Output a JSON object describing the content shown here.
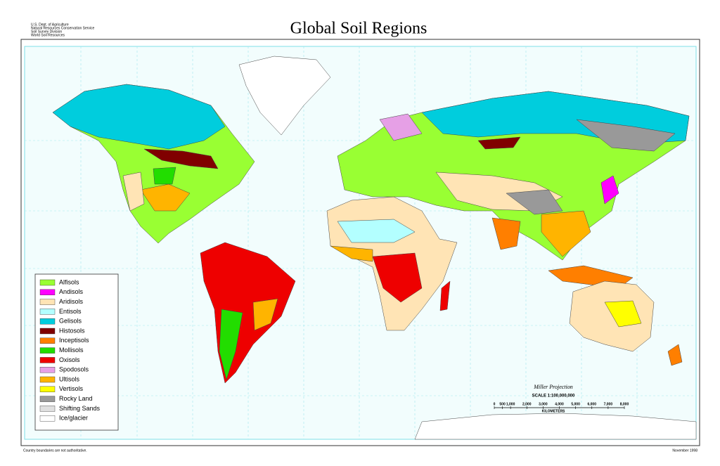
{
  "header": {
    "agency": [
      "U.S. Dept. of Agriculture",
      "Natural Resources Conservation Service",
      "Soil Survey Division",
      "World Soil Resources"
    ],
    "title": "Global Soil Regions"
  },
  "legend": {
    "items": [
      {
        "name": "Alfisols",
        "color": "#99ff33"
      },
      {
        "name": "Andisols",
        "color": "#ff00ff"
      },
      {
        "name": "Aridisols",
        "color": "#ffe4b5"
      },
      {
        "name": "Entisols",
        "color": "#b3ffff"
      },
      {
        "name": "Gelisols",
        "color": "#00cddd"
      },
      {
        "name": "Histosols",
        "color": "#800000"
      },
      {
        "name": "Inceptisols",
        "color": "#ff7f00"
      },
      {
        "name": "Mollisols",
        "color": "#22dd00"
      },
      {
        "name": "Oxisols",
        "color": "#ee0000"
      },
      {
        "name": "Spodosols",
        "color": "#e6a0e6"
      },
      {
        "name": "Ultisols",
        "color": "#ffb400"
      },
      {
        "name": "Vertisols",
        "color": "#ffff00"
      },
      {
        "name": "Rocky Land",
        "color": "#999999"
      },
      {
        "name": "Shifting Sands",
        "color": "#e0e0e0"
      },
      {
        "name": "Ice/glacier",
        "color": "#ffffff"
      }
    ]
  },
  "scale": {
    "projection": "Miller Projection",
    "ratio": "SCALE 1:100,000,000",
    "unit": "KILOMETERS",
    "xlim": [
      0,
      8000
    ],
    "ticks": [
      0,
      500,
      {
        "value": 1000,
        "label": "1,000"
      },
      {
        "value": 2000,
        "label": "2,000"
      },
      {
        "value": 3000,
        "label": "3,000"
      },
      {
        "value": 4000,
        "label": "4,000"
      },
      {
        "value": 5000,
        "label": "5,000"
      },
      {
        "value": 6000,
        "label": "6,000"
      },
      {
        "value": 7000,
        "label": "7,000"
      },
      {
        "value": 8000,
        "label": "8,000"
      }
    ]
  },
  "footer": {
    "note": "Country boundaries are not authoritative.",
    "date": "November 1998"
  }
}
